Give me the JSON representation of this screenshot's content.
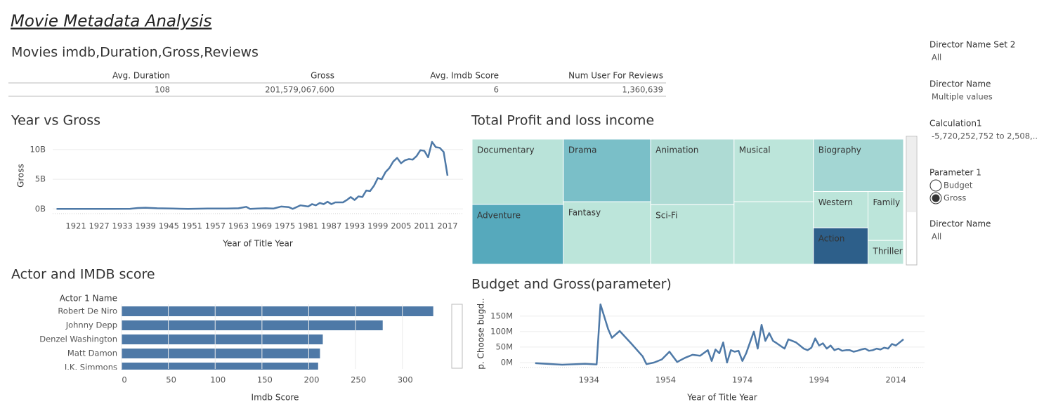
{
  "title": "Movie Metadata Analysis",
  "summary": {
    "title": "Movies imdb,Duration,Gross,Reviews",
    "columns": [
      "Avg. Duration",
      "Gross",
      "Avg. Imdb Score",
      "Num User For Reviews"
    ],
    "row": [
      "108",
      "201,579,067,600",
      "6",
      "1,360,639"
    ]
  },
  "filters": [
    {
      "label": "Director Name Set 2",
      "value": "All"
    },
    {
      "label": "Director Name",
      "value": "Multiple values"
    },
    {
      "label": "Calculation1",
      "value": "-5,720,252,752 to 2,508,.."
    },
    {
      "label": "Parameter 1",
      "options": [
        "Budget",
        "Gross"
      ],
      "selected": 1
    },
    {
      "label": "Director Name",
      "value": "All"
    }
  ],
  "chart_data": [
    {
      "type": "line",
      "title": "Year vs Gross",
      "x_label": "Year of Title Year",
      "y_label": "Gross",
      "color": "#4e79a7",
      "grid": true,
      "x": [
        1916,
        1920,
        1925,
        1930,
        1935,
        1937,
        1939,
        1942,
        1946,
        1950,
        1955,
        1960,
        1963,
        1965,
        1966,
        1968,
        1970,
        1972,
        1974,
        1976,
        1977,
        1979,
        1981,
        1982,
        1983,
        1984,
        1985,
        1986,
        1987,
        1988,
        1990,
        1991,
        1992,
        1993,
        1994,
        1995,
        1996,
        1997,
        1998,
        1999,
        2000,
        2001,
        2002,
        2003,
        2004,
        2005,
        2006,
        2007,
        2008,
        2009,
        2010,
        2011,
        2012,
        2013,
        2014,
        2015,
        2016,
        2017
      ],
      "values": [
        0,
        0,
        0,
        0,
        20000000,
        150000000,
        200000000,
        100000000,
        50000000,
        0,
        50000000,
        50000000,
        100000000,
        350000000,
        0,
        50000000,
        100000000,
        50000000,
        400000000,
        300000000,
        0,
        600000000,
        400000000,
        800000000,
        600000000,
        1000000000,
        800000000,
        1200000000,
        800000000,
        1100000000,
        1100000000,
        1500000000,
        2000000000,
        1500000000,
        2100000000,
        2000000000,
        3100000000,
        3000000000,
        3900000000,
        5200000000,
        5000000000,
        6200000000,
        6900000000,
        8000000000,
        8600000000,
        7700000000,
        8200000000,
        8400000000,
        8300000000,
        8900000000,
        9900000000,
        9800000000,
        8700000000,
        11300000000,
        10400000000,
        10300000000,
        9600000000,
        5600000000
      ],
      "xlim": [
        1915,
        2021
      ],
      "xticks": [
        1921,
        1927,
        1933,
        1939,
        1945,
        1951,
        1957,
        1963,
        1969,
        1975,
        1981,
        1987,
        1993,
        1999,
        2005,
        2011,
        2017
      ],
      "ylim": [
        -800000000,
        12000000000
      ],
      "yticks": [
        {
          "value": 0,
          "label": "0B"
        },
        {
          "value": 5000000000,
          "label": "5B"
        },
        {
          "value": 10000000000,
          "label": "10B"
        }
      ]
    },
    {
      "type": "treemap",
      "title": "Total Profit and loss income",
      "categories": [
        "Documentary",
        "Adventure",
        "Drama",
        "Fantasy",
        "Animation",
        "Sci-Fi",
        "Musical",
        null,
        "Biography",
        "Western",
        "Action",
        "Family",
        "Thriller"
      ],
      "values": [
        12,
        11,
        11,
        11,
        11,
        10,
        10,
        10,
        9.5,
        4,
        4,
        3.5,
        1.7
      ],
      "colors": [
        "#b9e3d9",
        "#56a9bc",
        "#7abfc8",
        "#bce5da",
        "#aedbd4",
        "#bce5da",
        "#bce5da",
        "#bce5da",
        "#a3d6d3",
        "#bce5da",
        "#2d5f8a",
        "#bce5da",
        "#bce5da"
      ]
    },
    {
      "type": "hbar",
      "title": "Actor and IMDB score",
      "category_label": "Actor 1 Name",
      "x_label": "Imdb Score",
      "color": "#4e79a7",
      "grid": true,
      "categories": [
        "Robert De Niro",
        "Johnny Depp",
        "Denzel Washington",
        "Matt Damon",
        "J.K. Simmons"
      ],
      "values": [
        333,
        279,
        215,
        212,
        210
      ],
      "xlim": [
        0,
        343
      ],
      "xticks": [
        0,
        50,
        100,
        150,
        200,
        250,
        300
      ]
    },
    {
      "type": "line",
      "title": "Budget and Gross(parameter)",
      "x_label": "Year of Title Year",
      "y_label": "p. Choose bugd..",
      "color": "#4e79a7",
      "grid": true,
      "x": [
        1920,
        1927,
        1933,
        1936,
        1937,
        1939,
        1940,
        1942,
        1945,
        1948,
        1949,
        1951,
        1953,
        1955,
        1957,
        1959,
        1961,
        1963,
        1965,
        1966,
        1967,
        1968,
        1969,
        1970,
        1971,
        1972,
        1973,
        1974,
        1975,
        1977,
        1978,
        1979,
        1980,
        1981,
        1982,
        1983,
        1985,
        1986,
        1988,
        1989,
        1990,
        1991,
        1992,
        1993,
        1994,
        1995,
        1996,
        1997,
        1998,
        1999,
        2000,
        2001,
        2002,
        2003,
        2004,
        2005,
        2006,
        2007,
        2008,
        2009,
        2010,
        2011,
        2012,
        2013,
        2014,
        2015,
        2016
      ],
      "values": [
        -2000000,
        -7000000,
        -4000000,
        -6000000,
        188000000,
        108000000,
        80000000,
        102000000,
        62000000,
        20000000,
        -5000000,
        0,
        10000000,
        35000000,
        2000000,
        15000000,
        25000000,
        22000000,
        40000000,
        5000000,
        42000000,
        30000000,
        65000000,
        0,
        40000000,
        35000000,
        38000000,
        5000000,
        30000000,
        100000000,
        45000000,
        122000000,
        70000000,
        95000000,
        70000000,
        62000000,
        45000000,
        75000000,
        65000000,
        55000000,
        45000000,
        40000000,
        48000000,
        78000000,
        55000000,
        62000000,
        45000000,
        55000000,
        40000000,
        45000000,
        38000000,
        40000000,
        40000000,
        35000000,
        38000000,
        42000000,
        45000000,
        38000000,
        40000000,
        45000000,
        42000000,
        48000000,
        45000000,
        60000000,
        55000000,
        65000000,
        75000000
      ],
      "xlim": [
        1916,
        2021.5
      ],
      "xticks": [
        1934,
        1954,
        1974,
        1994,
        2014
      ],
      "ylim": [
        -16000000,
        195000000
      ],
      "yticks": [
        {
          "value": 0,
          "label": "0M"
        },
        {
          "value": 50000000,
          "label": "50M"
        },
        {
          "value": 100000000,
          "label": "100M"
        },
        {
          "value": 150000000,
          "label": "150M"
        }
      ]
    }
  ]
}
